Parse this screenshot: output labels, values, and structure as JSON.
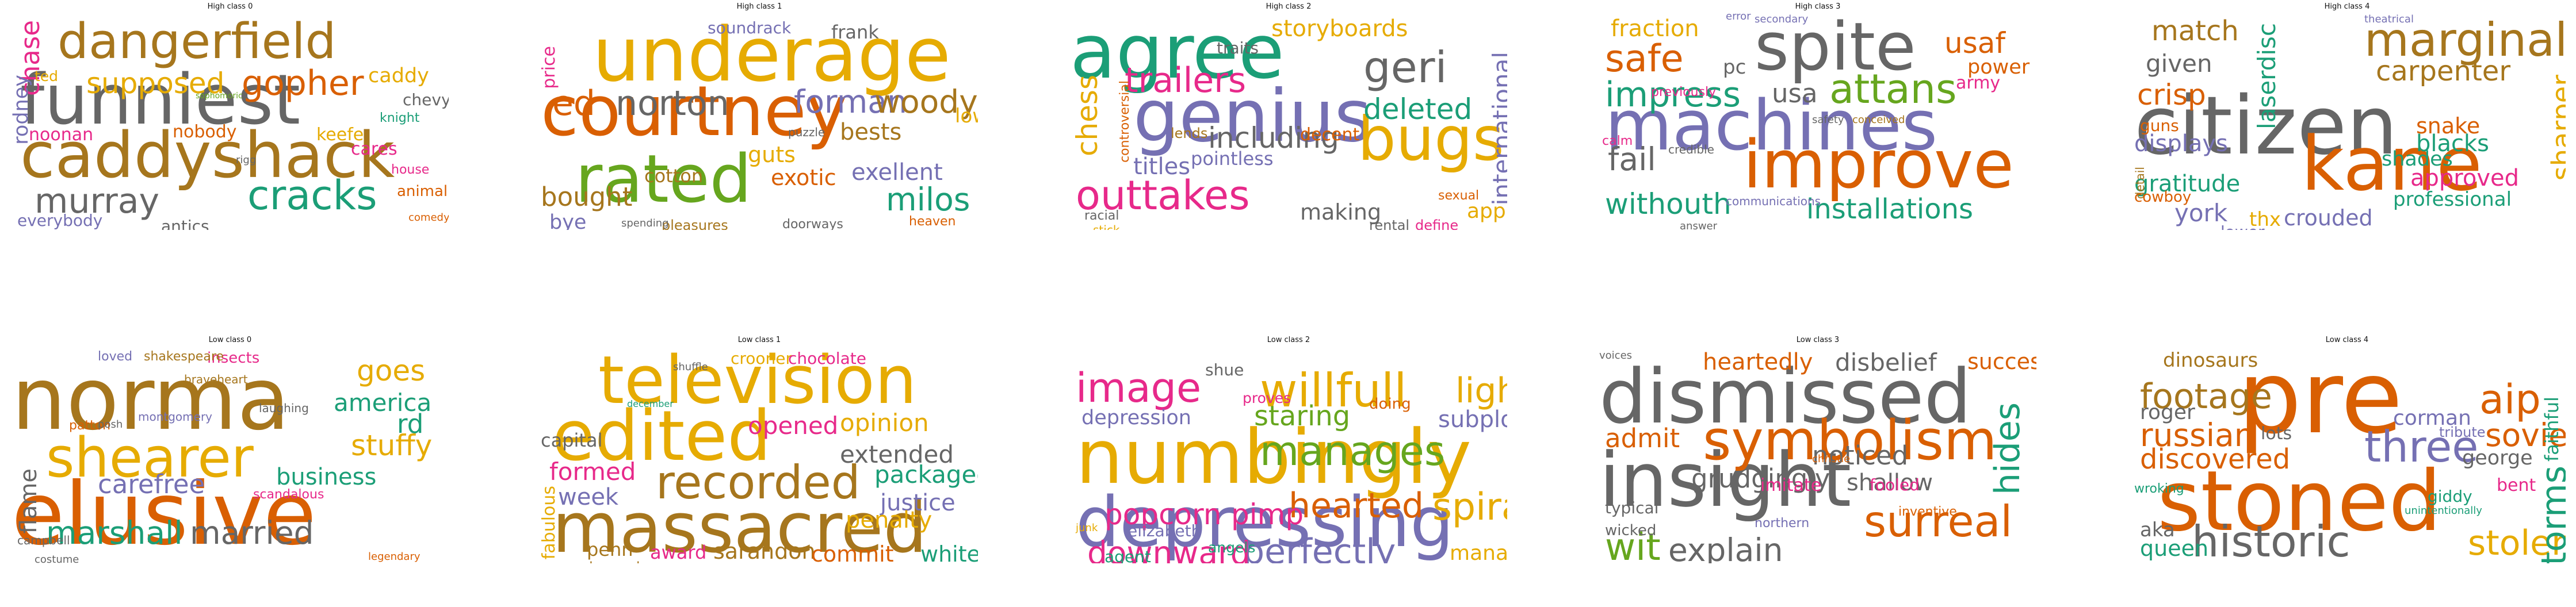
{
  "palette": {
    "green": "#1b9e77",
    "orange": "#d95f02",
    "purple": "#7570b3",
    "pink": "#e7298a",
    "lime": "#66a61e",
    "gold": "#e6ab02",
    "brown": "#a6761d",
    "grey": "#666666"
  },
  "panels": [
    {
      "title": "High class 0",
      "words": [
        {
          "text": "funniest"
        },
        {
          "text": "caddyshack"
        },
        {
          "text": "dangerfield"
        },
        {
          "text": "gopher"
        },
        {
          "text": "supposed"
        },
        {
          "text": "murray"
        },
        {
          "text": "cracks"
        },
        {
          "text": "chase"
        },
        {
          "text": "rodney"
        },
        {
          "text": "noonan"
        },
        {
          "text": "nobody"
        },
        {
          "text": "keefe"
        },
        {
          "text": "cares"
        },
        {
          "text": "caddy"
        },
        {
          "text": "antics"
        },
        {
          "text": "everybody"
        },
        {
          "text": "chevy"
        },
        {
          "text": "knight"
        },
        {
          "text": "animal"
        },
        {
          "text": "ted"
        },
        {
          "text": "house"
        },
        {
          "text": "comedy"
        },
        {
          "text": "rigg"
        },
        {
          "text": "sophomoric"
        }
      ]
    },
    {
      "title": "High class 1",
      "words": [
        {
          "text": "underage"
        },
        {
          "text": "courtney"
        },
        {
          "text": "rated"
        },
        {
          "text": "norton"
        },
        {
          "text": "ed"
        },
        {
          "text": "forman"
        },
        {
          "text": "woody"
        },
        {
          "text": "milos"
        },
        {
          "text": "exellent"
        },
        {
          "text": "bests"
        },
        {
          "text": "bought"
        },
        {
          "text": "cotton"
        },
        {
          "text": "bye"
        },
        {
          "text": "frank"
        },
        {
          "text": "soundrack"
        },
        {
          "text": "price"
        },
        {
          "text": "heaven"
        },
        {
          "text": "guts"
        },
        {
          "text": "exotic"
        },
        {
          "text": "low"
        },
        {
          "text": "puzzle"
        },
        {
          "text": "pleasures"
        },
        {
          "text": "doorways"
        },
        {
          "text": "spending"
        }
      ]
    },
    {
      "title": "High class 2",
      "words": [
        {
          "text": "agree"
        },
        {
          "text": "genius"
        },
        {
          "text": "bugs"
        },
        {
          "text": "outtakes"
        },
        {
          "text": "chess"
        },
        {
          "text": "geri"
        },
        {
          "text": "trailers"
        },
        {
          "text": "deleted"
        },
        {
          "text": "including"
        },
        {
          "text": "titles"
        },
        {
          "text": "storyboards"
        },
        {
          "text": "international"
        },
        {
          "text": "making"
        },
        {
          "text": "decent"
        },
        {
          "text": "pointless"
        },
        {
          "text": "traits"
        },
        {
          "text": "apple"
        },
        {
          "text": "sexual"
        },
        {
          "text": "rental"
        },
        {
          "text": "define"
        },
        {
          "text": "lends"
        },
        {
          "text": "racial"
        },
        {
          "text": "controversial"
        },
        {
          "text": "stick"
        }
      ]
    },
    {
      "title": "High class 3",
      "words": [
        {
          "text": "machines"
        },
        {
          "text": "spite"
        },
        {
          "text": "improve"
        },
        {
          "text": "safe"
        },
        {
          "text": "impress"
        },
        {
          "text": "attans"
        },
        {
          "text": "fail"
        },
        {
          "text": "withouth"
        },
        {
          "text": "installations"
        },
        {
          "text": "fraction"
        },
        {
          "text": "usaf"
        },
        {
          "text": "power"
        },
        {
          "text": "army"
        },
        {
          "text": "usa"
        },
        {
          "text": "pc"
        },
        {
          "text": "calm"
        },
        {
          "text": "credible"
        },
        {
          "text": "communications"
        },
        {
          "text": "answer"
        },
        {
          "text": "previously"
        },
        {
          "text": "safety"
        },
        {
          "text": "secondary"
        },
        {
          "text": "error"
        },
        {
          "text": "conceived"
        }
      ]
    },
    {
      "title": "High class 4",
      "words": [
        {
          "text": "citizen"
        },
        {
          "text": "kane"
        },
        {
          "text": "marginally"
        },
        {
          "text": "carpenter"
        },
        {
          "text": "crisp"
        },
        {
          "text": "match"
        },
        {
          "text": "given"
        },
        {
          "text": "displays"
        },
        {
          "text": "blacks"
        },
        {
          "text": "laserdisc"
        },
        {
          "text": "gratitude"
        },
        {
          "text": "york"
        },
        {
          "text": "crouded"
        },
        {
          "text": "professional"
        },
        {
          "text": "approved"
        },
        {
          "text": "shades"
        },
        {
          "text": "snake"
        },
        {
          "text": "detail"
        },
        {
          "text": "sharper"
        },
        {
          "text": "thx"
        },
        {
          "text": "lower"
        },
        {
          "text": "cowboy"
        },
        {
          "text": "guns"
        },
        {
          "text": "theatrical"
        }
      ]
    },
    {
      "title": "Low class 0",
      "words": [
        {
          "text": "norma"
        },
        {
          "text": "elusive"
        },
        {
          "text": "shearer"
        },
        {
          "text": "goes"
        },
        {
          "text": "america"
        },
        {
          "text": "rd"
        },
        {
          "text": "stuffy"
        },
        {
          "text": "business"
        },
        {
          "text": "carefree"
        },
        {
          "text": "marshall"
        },
        {
          "text": "married"
        },
        {
          "text": "flame"
        },
        {
          "text": "insects"
        },
        {
          "text": "loved"
        },
        {
          "text": "shakespeare"
        },
        {
          "text": "braveheart"
        },
        {
          "text": "patton"
        },
        {
          "text": "scandalous"
        },
        {
          "text": "campbell"
        },
        {
          "text": "costume"
        },
        {
          "text": "legendary"
        },
        {
          "text": "posh"
        },
        {
          "text": "montgomery"
        },
        {
          "text": "laughing"
        }
      ]
    },
    {
      "title": "Low class 1",
      "words": [
        {
          "text": "television"
        },
        {
          "text": "edited"
        },
        {
          "text": "massacred"
        },
        {
          "text": "recorded"
        },
        {
          "text": "opened"
        },
        {
          "text": "opinion"
        },
        {
          "text": "extended"
        },
        {
          "text": "packaged"
        },
        {
          "text": "justice"
        },
        {
          "text": "penalty"
        },
        {
          "text": "formed"
        },
        {
          "text": "week"
        },
        {
          "text": "capital"
        },
        {
          "text": "fabulous"
        },
        {
          "text": "sarandon"
        },
        {
          "text": "commit"
        },
        {
          "text": "white"
        },
        {
          "text": "award"
        },
        {
          "text": "penn"
        },
        {
          "text": "rehearsals"
        },
        {
          "text": "crooner"
        },
        {
          "text": "chocolate"
        },
        {
          "text": "shuffle"
        },
        {
          "text": "december"
        }
      ]
    },
    {
      "title": "Low class 2",
      "words": [
        {
          "text": "numbingly"
        },
        {
          "text": "depressing"
        },
        {
          "text": "willfull"
        },
        {
          "text": "manages"
        },
        {
          "text": "image"
        },
        {
          "text": "light"
        },
        {
          "text": "hearted"
        },
        {
          "text": "spiral"
        },
        {
          "text": "perfectly"
        },
        {
          "text": "downward"
        },
        {
          "text": "popcorn"
        },
        {
          "text": "staring"
        },
        {
          "text": "subplot"
        },
        {
          "text": "depression"
        },
        {
          "text": "useless"
        },
        {
          "text": "manage"
        },
        {
          "text": "elizabeth"
        },
        {
          "text": "angels"
        },
        {
          "text": "agent"
        },
        {
          "text": "pimp"
        },
        {
          "text": "shue"
        },
        {
          "text": "proves"
        },
        {
          "text": "doing"
        },
        {
          "text": "junk"
        }
      ]
    },
    {
      "title": "Low class 3",
      "words": [
        {
          "text": "dismissed"
        },
        {
          "text": "insight"
        },
        {
          "text": "symbolism"
        },
        {
          "text": "surreal"
        },
        {
          "text": "wit"
        },
        {
          "text": "explain"
        },
        {
          "text": "hides"
        },
        {
          "text": "grudgingly"
        },
        {
          "text": "noticed"
        },
        {
          "text": "shallow"
        },
        {
          "text": "disbelief"
        },
        {
          "text": "successfully"
        },
        {
          "text": "heartedly"
        },
        {
          "text": "admit"
        },
        {
          "text": "typical"
        },
        {
          "text": "imitate"
        },
        {
          "text": "fooled"
        },
        {
          "text": "inventive"
        },
        {
          "text": "wicked"
        },
        {
          "text": "northern"
        },
        {
          "text": "mischievous"
        },
        {
          "text": "somber"
        },
        {
          "text": "voices"
        },
        {
          "text": "christie"
        }
      ]
    },
    {
      "title": "Low class 4",
      "words": [
        {
          "text": "pre"
        },
        {
          "text": "stoned"
        },
        {
          "text": "historic"
        },
        {
          "text": "footage"
        },
        {
          "text": "aip"
        },
        {
          "text": "three"
        },
        {
          "text": "russian"
        },
        {
          "text": "soviet"
        },
        {
          "text": "discovered"
        },
        {
          "text": "stolen"
        },
        {
          "text": "corman"
        },
        {
          "text": "roger"
        },
        {
          "text": "storms"
        },
        {
          "text": "dinosaurs"
        },
        {
          "text": "lots"
        },
        {
          "text": "queen"
        },
        {
          "text": "aka"
        },
        {
          "text": "george"
        },
        {
          "text": "bent"
        },
        {
          "text": "giddy"
        },
        {
          "text": "unintentionally"
        },
        {
          "text": "wroking"
        },
        {
          "text": "tribute"
        },
        {
          "text": "faithful"
        }
      ]
    }
  ]
}
